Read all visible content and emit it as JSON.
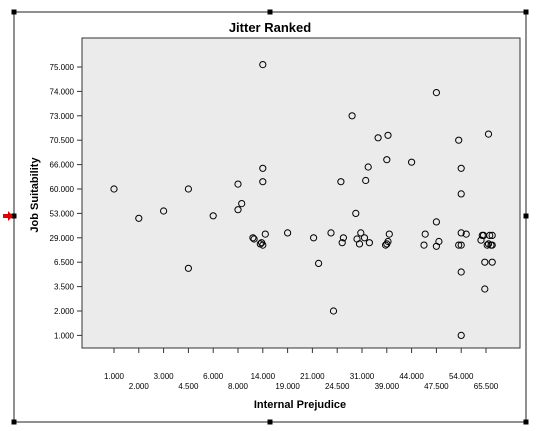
{
  "chart_data": {
    "type": "scatter",
    "title": "Jitter Ranked",
    "xlabel": "Internal Prejudice",
    "ylabel": "Job Suitability",
    "grid": false,
    "x_ticks": [
      "1.000",
      "2.000",
      "3.000",
      "4.500",
      "6.000",
      "8.000",
      "14.000",
      "19.000",
      "21.000",
      "24.500",
      "31.000",
      "39.000",
      "44.000",
      "47.500",
      "54.000",
      "65.500"
    ],
    "y_ticks": [
      "75.000",
      "74.000",
      "73.000",
      "70.500",
      "66.000",
      "60.000",
      "53.000",
      "29.000",
      "6.500",
      "3.500",
      "2.000",
      "1.000"
    ],
    "points": [
      {
        "x": "1.000",
        "y": "60.000"
      },
      {
        "x": "2.000",
        "y": "53.000",
        "dy": 0.2
      },
      {
        "x": "3.000",
        "y": "53.000",
        "dy": -0.1
      },
      {
        "x": "4.500",
        "y": "60.000"
      },
      {
        "x": "4.500",
        "y": "6.500",
        "dy": 0.25
      },
      {
        "x": "6.000",
        "y": "53.000",
        "dy": 0.1
      },
      {
        "x": "8.000",
        "y": "60.000",
        "dy": -0.2
      },
      {
        "x": "8.000",
        "y": "53.000",
        "dy": -0.15
      },
      {
        "x": "8.000",
        "y": "53.000",
        "dx": 0.15,
        "dy": -0.4
      },
      {
        "x": "8.000",
        "y": "29.000",
        "dx": 0.6
      },
      {
        "x": "8.000",
        "y": "29.000",
        "dx": 0.65,
        "dy": 0.05
      },
      {
        "x": "14.000",
        "y": "75.000",
        "dy": -0.1
      },
      {
        "x": "14.000",
        "y": "66.000",
        "dy": 0.15
      },
      {
        "x": "14.000",
        "y": "60.000",
        "dy": -0.3
      },
      {
        "x": "14.000",
        "y": "29.000",
        "dy": 0.3
      },
      {
        "x": "14.000",
        "y": "29.000",
        "dx": -0.1,
        "dy": 0.25
      },
      {
        "x": "14.000",
        "y": "29.000",
        "dx": -0.05,
        "dy": 0.2
      },
      {
        "x": "14.000",
        "y": "29.000",
        "dx": 0.1,
        "dy": -0.15
      },
      {
        "x": "19.000",
        "y": "29.000",
        "dy": -0.2
      },
      {
        "x": "21.000",
        "y": "2.000",
        "dx": 0.85
      },
      {
        "x": "21.000",
        "y": "29.000",
        "dx": 0.05
      },
      {
        "x": "21.000",
        "y": "6.500",
        "dx": 0.25,
        "dy": 0.05
      },
      {
        "x": "24.500",
        "y": "29.000",
        "dx": -0.25,
        "dy": -0.2
      },
      {
        "x": "24.500",
        "y": "60.000",
        "dx": 0.15,
        "dy": -0.3
      },
      {
        "x": "24.500",
        "y": "29.000",
        "dx": 0.2,
        "dy": 0.2
      },
      {
        "x": "24.500",
        "y": "29.000",
        "dx": 0.25
      },
      {
        "x": "31.000",
        "y": "73.000",
        "dx": -0.4
      },
      {
        "x": "31.000",
        "y": "53.000",
        "dx": -0.25
      },
      {
        "x": "31.000",
        "y": "29.000",
        "dx": -0.1,
        "dy": 0.25
      },
      {
        "x": "31.000",
        "y": "29.000",
        "dx": -0.05,
        "dy": -0.2
      },
      {
        "x": "31.000",
        "y": "29.000",
        "dx": 0.1
      },
      {
        "x": "31.000",
        "y": "29.000",
        "dx": -0.2,
        "dy": 0.05
      },
      {
        "x": "31.000",
        "y": "60.000",
        "dx": 0.15,
        "dy": -0.35
      },
      {
        "x": "31.000",
        "y": "66.000",
        "dx": 0.25,
        "dy": 0.1
      },
      {
        "x": "31.000",
        "y": "29.000",
        "dx": 0.3,
        "dy": 0.2
      },
      {
        "x": "39.000",
        "y": "70.500",
        "dx": -0.35,
        "dy": -0.1
      },
      {
        "x": "39.000",
        "y": "70.500",
        "dx": 0.05,
        "dy": -0.2
      },
      {
        "x": "39.000",
        "y": "66.000",
        "dy": -0.2
      },
      {
        "x": "39.000",
        "y": "29.000",
        "dx": -0.05,
        "dy": 0.3
      },
      {
        "x": "39.000",
        "y": "29.000",
        "dy": 0.25
      },
      {
        "x": "39.000",
        "y": "29.000",
        "dx": 0.05,
        "dy": 0.15
      },
      {
        "x": "39.000",
        "y": "29.000",
        "dx": 0.1,
        "dy": -0.15
      },
      {
        "x": "44.000",
        "y": "66.000",
        "dy": -0.1
      },
      {
        "x": "44.000",
        "y": "29.000",
        "dx": 0.5,
        "dy": 0.3
      },
      {
        "x": "44.000",
        "y": "29.000",
        "dx": 0.55,
        "dy": -0.15
      },
      {
        "x": "47.500",
        "y": "74.000",
        "dy": 0.05
      },
      {
        "x": "47.500",
        "y": "53.000",
        "dy": 0.35
      },
      {
        "x": "47.500",
        "y": "29.000",
        "dy": 0.35
      },
      {
        "x": "47.500",
        "y": "29.000",
        "dx": 0.1,
        "dy": 0.15
      },
      {
        "x": "54.000",
        "y": "70.500",
        "dx": -0.1
      },
      {
        "x": "54.000",
        "y": "66.000",
        "dy": 0.15
      },
      {
        "x": "54.000",
        "y": "60.000",
        "dy": 0.2
      },
      {
        "x": "54.000",
        "y": "29.000",
        "dx": -0.1,
        "dy": 0.3
      },
      {
        "x": "54.000",
        "y": "29.000",
        "dy": 0.3
      },
      {
        "x": "54.000",
        "y": "29.000",
        "dy": -0.2
      },
      {
        "x": "54.000",
        "y": "6.500",
        "dy": 0.4
      },
      {
        "x": "54.000",
        "y": "1.000"
      },
      {
        "x": "54.000",
        "y": "29.000",
        "dx": 0.2,
        "dy": -0.15
      },
      {
        "x": "65.500",
        "y": "70.500",
        "dx": 0.1,
        "dy": -0.25
      },
      {
        "x": "65.500",
        "y": "29.000",
        "dx": -0.2,
        "dy": 0.1
      },
      {
        "x": "65.500",
        "y": "29.000",
        "dx": -0.15,
        "dy": -0.1
      },
      {
        "x": "65.500",
        "y": "29.000",
        "dx": -0.1,
        "dy": -0.1
      },
      {
        "x": "65.500",
        "y": "29.000",
        "dx": 0.05,
        "dy": 0.3
      },
      {
        "x": "65.500",
        "y": "29.000",
        "dx": 0.1,
        "dy": 0.25
      },
      {
        "x": "65.500",
        "y": "29.000",
        "dx": 0.2,
        "dy": 0.3
      },
      {
        "x": "65.500",
        "y": "29.000",
        "dx": 0.25,
        "dy": 0.3
      },
      {
        "x": "65.500",
        "y": "29.000",
        "dx": 0.25,
        "dy": -0.1
      },
      {
        "x": "65.500",
        "y": "29.000",
        "dx": 0.15,
        "dy": -0.1
      },
      {
        "x": "65.500",
        "y": "6.500",
        "dx": -0.05
      },
      {
        "x": "65.500",
        "y": "6.500",
        "dx": 0.25
      },
      {
        "x": "65.500",
        "y": "3.500",
        "dx": -0.05,
        "dy": 0.1
      }
    ],
    "marker": "hollow-circle",
    "colors": {
      "plot_background": "#ebebeb",
      "marker_stroke": "#000000",
      "selection_handles": "#000000",
      "arrow": "#e00000"
    }
  }
}
